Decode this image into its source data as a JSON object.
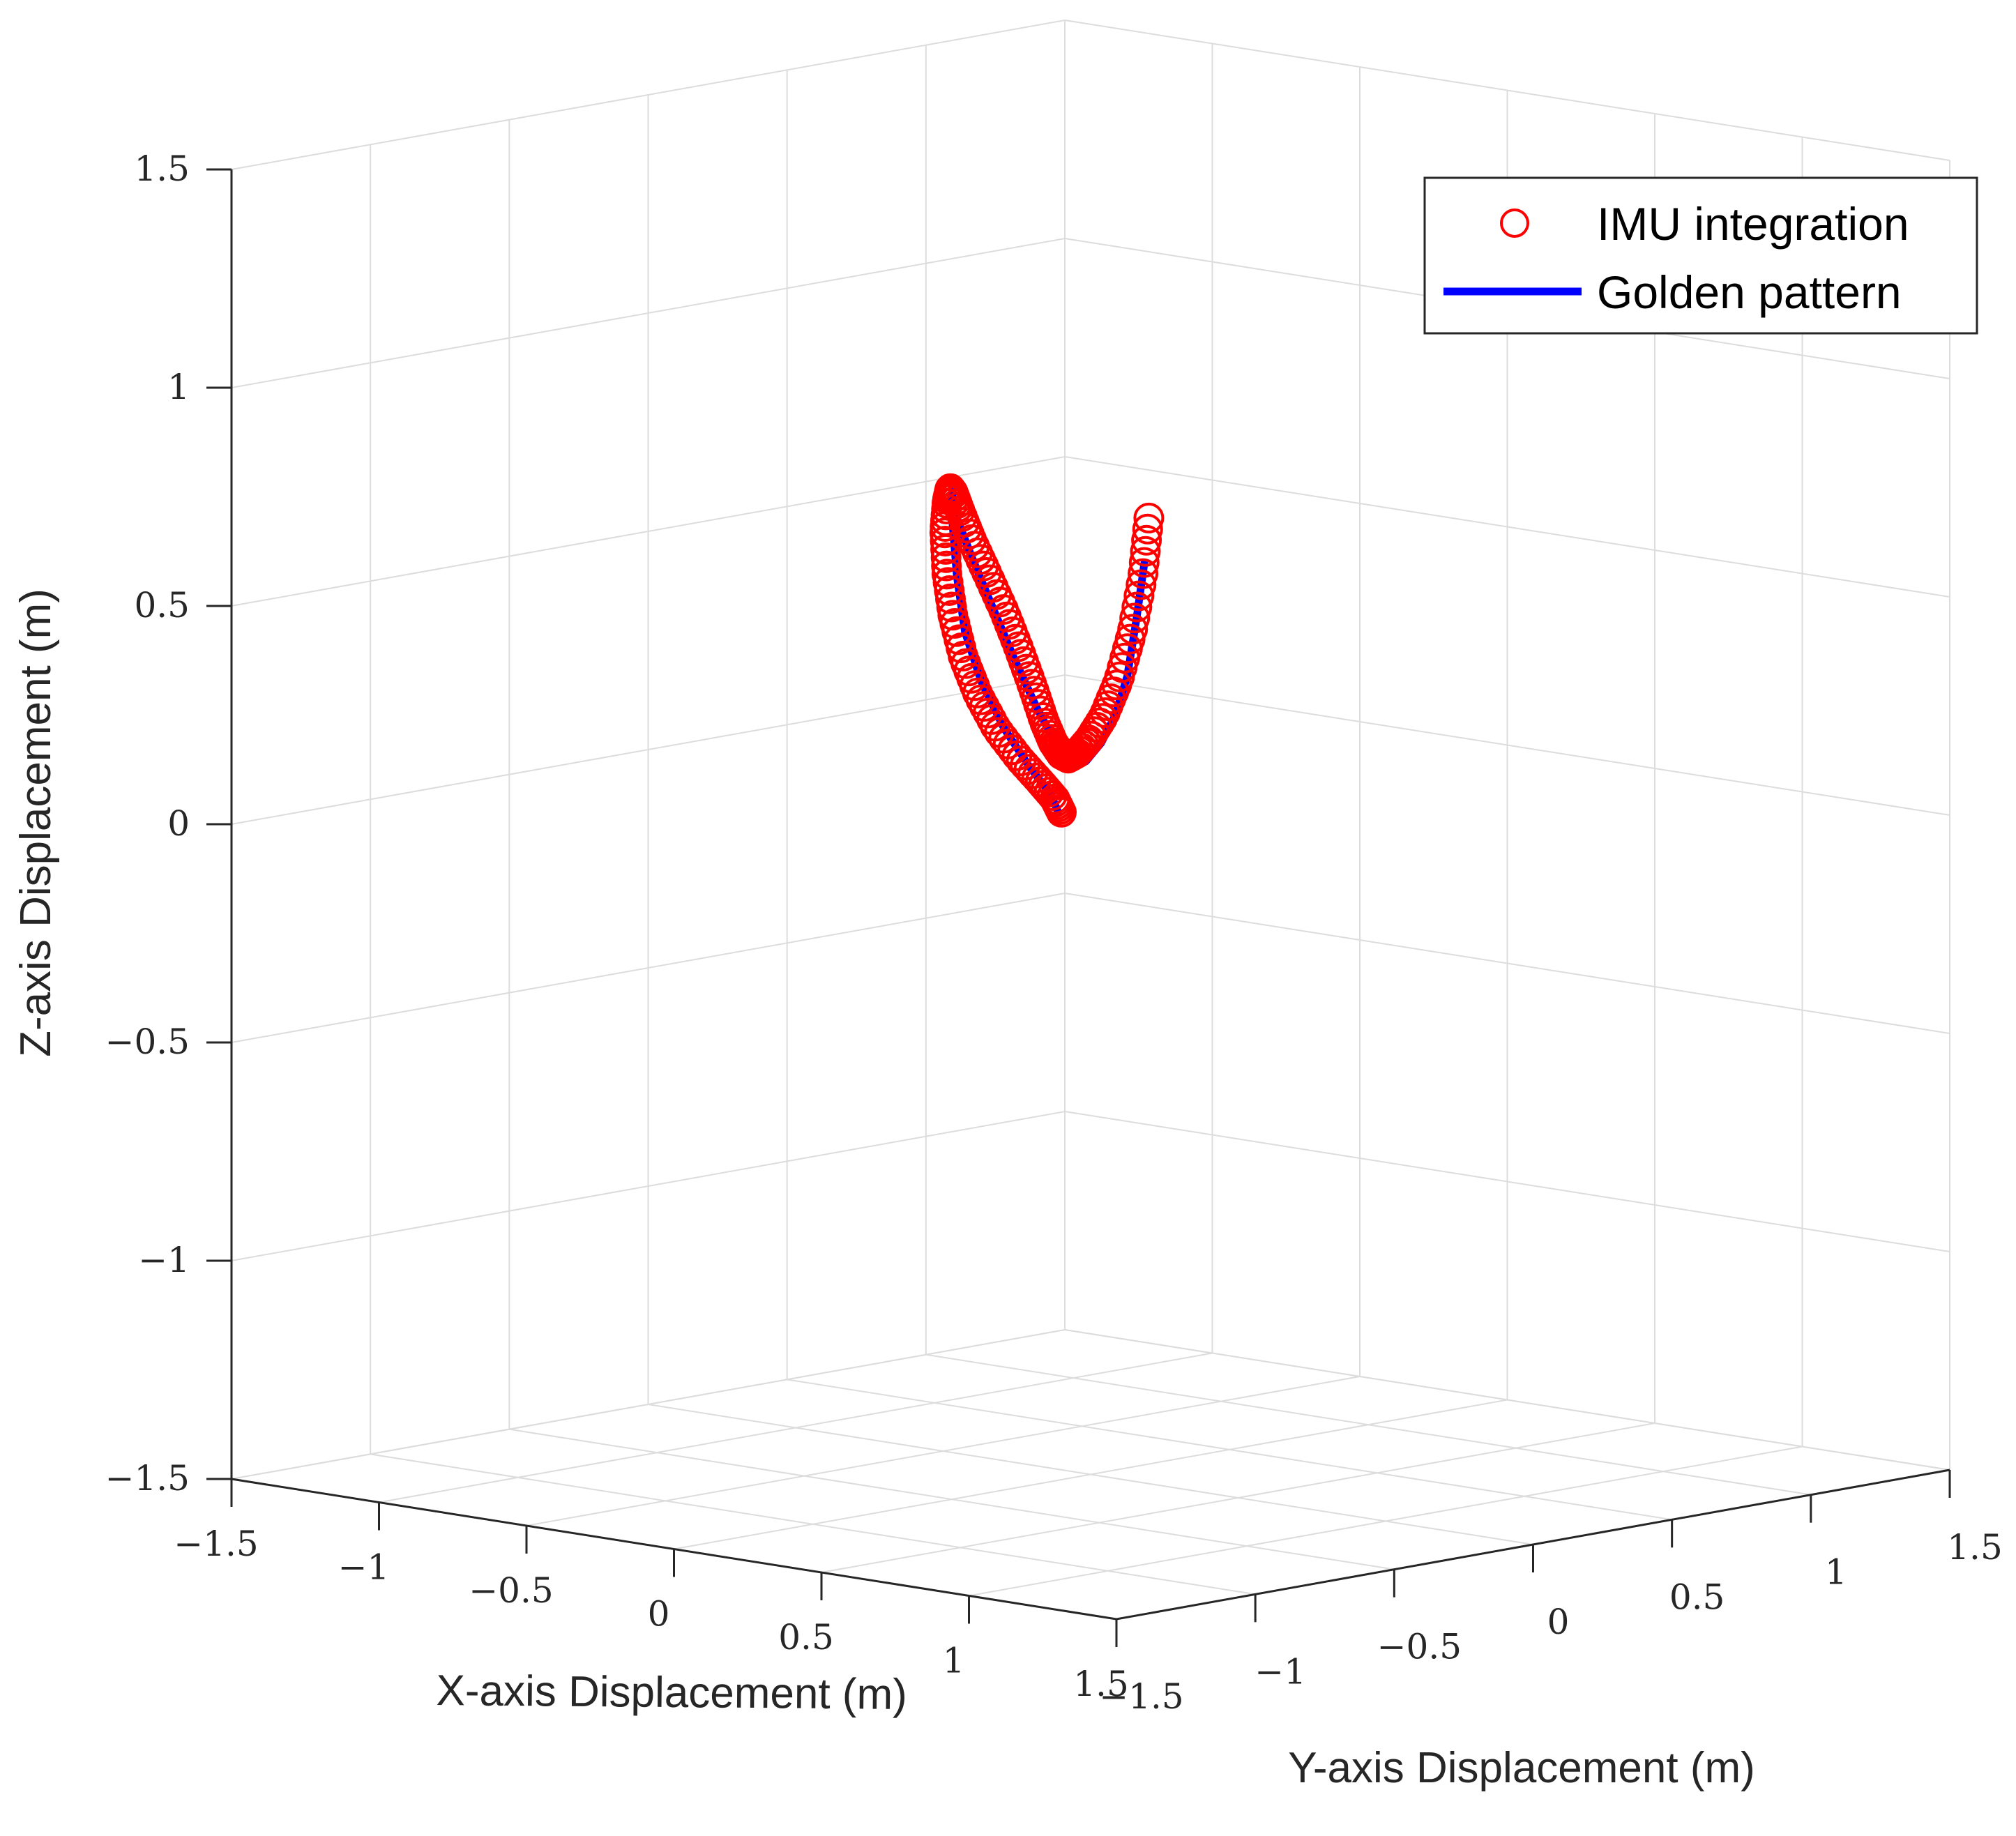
{
  "chart_data": {
    "type": "scatter",
    "title": "",
    "xlabel": "X-axis Displacement (m)",
    "ylabel": "Y-axis Displacement (m)",
    "zlabel": "Z-axis Displacement (m)",
    "xlim": [
      -1.5,
      1.5
    ],
    "ylim": [
      -1.5,
      1.5
    ],
    "zlim": [
      -1.5,
      1.5
    ],
    "x_ticks": [
      -1.5,
      -1,
      -0.5,
      0,
      0.5,
      1,
      1.5
    ],
    "y_ticks": [
      -1.5,
      -1,
      -0.5,
      0,
      0.5,
      1,
      1.5
    ],
    "z_ticks": [
      -1.5,
      -1,
      -0.5,
      0,
      0.5,
      1,
      1.5
    ],
    "x_tick_labels": [
      "−1.5",
      "−1",
      "−0.5",
      "0",
      "0.5",
      "1",
      "1.5"
    ],
    "y_tick_labels": [
      "−1.5",
      "−1",
      "−0.5",
      "0",
      "0.5",
      "1",
      "1.5"
    ],
    "z_tick_labels": [
      "−1.5",
      "−1",
      "−0.5",
      "0",
      "0.5",
      "1",
      "1.5"
    ],
    "grid": true,
    "legend_position": "top-right",
    "colors": {
      "imu": "#ff0000",
      "golden": "#0000ff",
      "axis": "#262626",
      "grid": "#dcdcdc"
    },
    "series": [
      {
        "name": "IMU integration",
        "style": "circle-marker",
        "color": "#ff0000",
        "points": [
          [
            0.056,
            0.15,
            0.68
          ],
          [
            0.049,
            0.136,
            0.55
          ],
          [
            0.034,
            0.113,
            0.42
          ],
          [
            0.015,
            0.084,
            0.31
          ],
          [
            -0.005,
            0.052,
            0.23
          ],
          [
            -0.023,
            0.02,
            0.18
          ],
          [
            -0.036,
            -0.009,
            0.15
          ],
          [
            -0.045,
            -0.033,
            0.14
          ],
          [
            -0.05,
            -0.053,
            0.15
          ],
          [
            -0.055,
            -0.077,
            0.18
          ],
          [
            -0.06,
            -0.103,
            0.23
          ],
          [
            -0.07,
            -0.133,
            0.31
          ],
          [
            -0.086,
            -0.166,
            0.4
          ],
          [
            -0.103,
            -0.202,
            0.49
          ],
          [
            -0.122,
            -0.244,
            0.58
          ],
          [
            -0.138,
            -0.283,
            0.66
          ],
          [
            -0.15,
            -0.313,
            0.73
          ],
          [
            -0.157,
            -0.328,
            0.77
          ],
          [
            -0.162,
            -0.334,
            0.78
          ],
          [
            -0.17,
            -0.336,
            0.75
          ],
          [
            -0.182,
            -0.332,
            0.68
          ],
          [
            -0.19,
            -0.316,
            0.58
          ],
          [
            -0.194,
            -0.29,
            0.48
          ],
          [
            -0.192,
            -0.254,
            0.38
          ],
          [
            -0.18,
            -0.213,
            0.29
          ],
          [
            -0.158,
            -0.17,
            0.21
          ],
          [
            -0.123,
            -0.125,
            0.14
          ],
          [
            -0.087,
            -0.092,
            0.09
          ],
          [
            -0.057,
            -0.069,
            0.05
          ],
          [
            -0.04,
            -0.063,
            0.02
          ]
        ]
      },
      {
        "name": "Golden pattern",
        "style": "line",
        "color": "#0000ff",
        "points": [
          [
            0.058,
            0.132,
            0.58
          ],
          [
            0.045,
            0.117,
            0.45
          ],
          [
            0.03,
            0.1,
            0.32
          ],
          [
            0.013,
            0.073,
            0.23
          ],
          [
            -0.005,
            0.043,
            0.17
          ],
          [
            -0.025,
            0.01,
            0.13
          ],
          [
            -0.038,
            -0.016,
            0.12
          ],
          [
            -0.047,
            -0.038,
            0.14
          ],
          [
            -0.057,
            -0.076,
            0.19
          ],
          [
            -0.073,
            -0.122,
            0.27
          ],
          [
            -0.095,
            -0.175,
            0.38
          ],
          [
            -0.12,
            -0.232,
            0.51
          ],
          [
            -0.14,
            -0.28,
            0.62
          ],
          [
            -0.152,
            -0.314,
            0.7
          ],
          [
            -0.157,
            -0.328,
            0.74
          ],
          [
            -0.162,
            -0.327,
            0.79
          ],
          [
            -0.174,
            -0.313,
            0.7
          ],
          [
            -0.182,
            -0.288,
            0.57
          ],
          [
            -0.186,
            -0.255,
            0.44
          ],
          [
            -0.176,
            -0.206,
            0.32
          ],
          [
            -0.15,
            -0.152,
            0.21
          ],
          [
            -0.11,
            -0.102,
            0.12
          ],
          [
            -0.073,
            -0.068,
            0.06
          ],
          [
            -0.052,
            -0.062,
            0.02
          ]
        ]
      }
    ]
  }
}
